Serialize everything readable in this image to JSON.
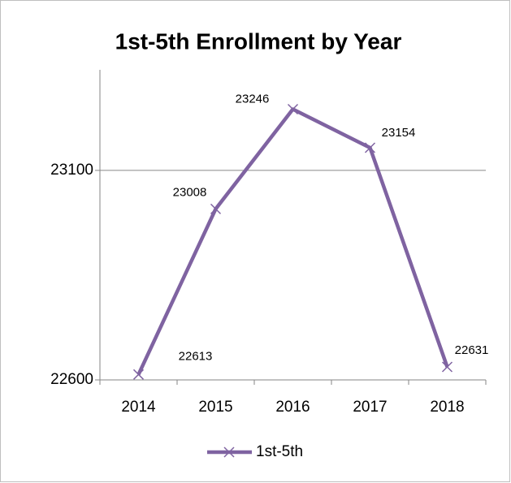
{
  "chart_data": {
    "type": "line",
    "title": "1st-5th Enrollment by Year",
    "categories": [
      "2014",
      "2015",
      "2016",
      "2017",
      "2018"
    ],
    "series": [
      {
        "name": "1st-5th",
        "color": "#7f63a1",
        "values": [
          22613,
          23008,
          23246,
          23154,
          22631
        ]
      }
    ],
    "ylim": [
      22600,
      23340
    ],
    "yticks": [
      22600,
      23100
    ],
    "grid": true,
    "legend": "bottom"
  }
}
